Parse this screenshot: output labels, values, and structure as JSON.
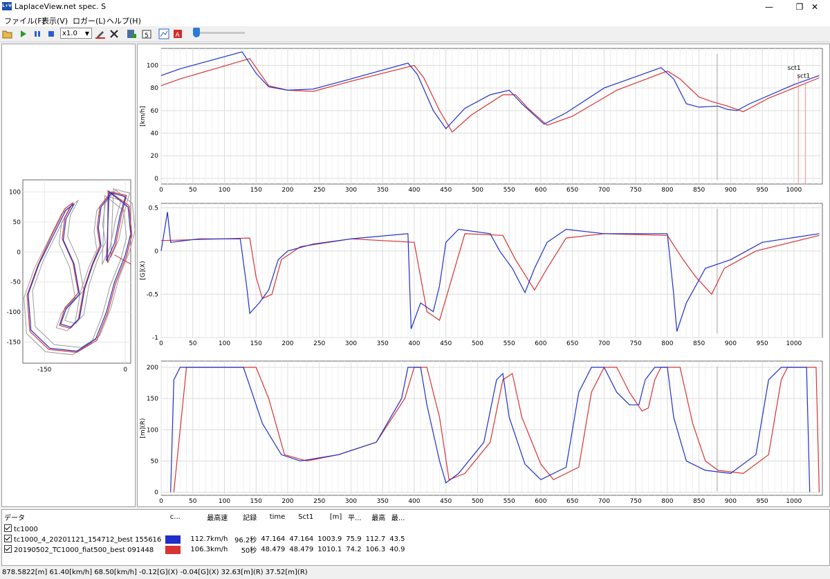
{
  "window": {
    "title": "LaplaceView.net spec. S",
    "icon_text": "L+V",
    "minimize": "—",
    "restore": "❐",
    "close": "✕"
  },
  "menu": [
    "ファイル(F)",
    "表示(V)",
    "ロガー(L)",
    "ヘルプ(H)"
  ],
  "toolbar": {
    "zoom_value": "x1.0",
    "icons": [
      "open-folder-icon",
      "play-icon",
      "pause-icon",
      "stop-icon",
      "zoom-select",
      "marker-icon",
      "delete-icon",
      "export-icon",
      "refresh-icon",
      "chart-icon",
      "pdf-icon",
      "position-slider"
    ]
  },
  "colors": {
    "blue": "#1f2fc8",
    "red": "#d83232"
  },
  "track_map": {
    "xlim": [
      -190,
      10
    ],
    "ylim": [
      -185,
      120
    ],
    "x_ticks": [
      -150,
      0
    ],
    "y_ticks": [
      100,
      50,
      0,
      -50,
      -100,
      -150
    ],
    "blue_path": [
      [
        -35,
        -15
      ],
      [
        -20,
        15
      ],
      [
        -10,
        60
      ],
      [
        0,
        92
      ],
      [
        -25,
        98
      ],
      [
        -45,
        75
      ],
      [
        -50,
        40
      ],
      [
        -45,
        10
      ],
      [
        -60,
        -20
      ],
      [
        -75,
        -60
      ],
      [
        -85,
        -110
      ],
      [
        -100,
        -125
      ],
      [
        -120,
        -120
      ],
      [
        -110,
        -95
      ],
      [
        -85,
        -70
      ],
      [
        -95,
        -20
      ],
      [
        -115,
        20
      ],
      [
        -110,
        55
      ],
      [
        -95,
        80
      ],
      [
        -110,
        70
      ],
      [
        -135,
        25
      ],
      [
        -160,
        -20
      ],
      [
        -180,
        -70
      ],
      [
        -175,
        -130
      ],
      [
        -140,
        -160
      ],
      [
        -90,
        -165
      ],
      [
        -55,
        -145
      ],
      [
        -35,
        -100
      ],
      [
        -20,
        -50
      ],
      [
        0,
        -5
      ],
      [
        10,
        30
      ],
      [
        5,
        75
      ],
      [
        -30,
        100
      ],
      [
        -35,
        -15
      ]
    ],
    "red_path": [
      [
        -33,
        -18
      ],
      [
        -18,
        12
      ],
      [
        -8,
        58
      ],
      [
        2,
        94
      ],
      [
        -26,
        100
      ],
      [
        -47,
        76
      ],
      [
        -52,
        41
      ],
      [
        -47,
        11
      ],
      [
        -62,
        -22
      ],
      [
        -77,
        -62
      ],
      [
        -87,
        -112
      ],
      [
        -102,
        -127
      ],
      [
        -122,
        -122
      ],
      [
        -112,
        -93
      ],
      [
        -87,
        -68
      ],
      [
        -97,
        -18
      ],
      [
        -117,
        22
      ],
      [
        -112,
        57
      ],
      [
        -97,
        82
      ],
      [
        -112,
        72
      ],
      [
        -137,
        27
      ],
      [
        -162,
        -22
      ],
      [
        -182,
        -72
      ],
      [
        -177,
        -132
      ],
      [
        -142,
        -162
      ],
      [
        -90,
        -167
      ],
      [
        -53,
        -147
      ],
      [
        -33,
        -102
      ],
      [
        -18,
        -52
      ],
      [
        2,
        -7
      ],
      [
        12,
        28
      ],
      [
        7,
        77
      ],
      [
        -32,
        102
      ],
      [
        -33,
        -18
      ]
    ]
  },
  "charts": [
    {
      "ylabel": "[km/h]",
      "ylim": [
        -5,
        115
      ],
      "y_ticks": [
        0,
        20,
        40,
        60,
        80,
        100
      ],
      "annotations": [
        "sct1",
        "sct1"
      ],
      "blue": [
        [
          0,
          91
        ],
        [
          30,
          97
        ],
        [
          128,
          112
        ],
        [
          150,
          93
        ],
        [
          170,
          81
        ],
        [
          200,
          78
        ],
        [
          240,
          79
        ],
        [
          300,
          88
        ],
        [
          390,
          102
        ],
        [
          405,
          92
        ],
        [
          430,
          60
        ],
        [
          450,
          44
        ],
        [
          480,
          62
        ],
        [
          520,
          74
        ],
        [
          550,
          78
        ],
        [
          570,
          66
        ],
        [
          605,
          48
        ],
        [
          640,
          58
        ],
        [
          700,
          80
        ],
        [
          790,
          98
        ],
        [
          810,
          88
        ],
        [
          830,
          66
        ],
        [
          850,
          63
        ],
        [
          880,
          64
        ],
        [
          895,
          61
        ],
        [
          910,
          60
        ],
        [
          930,
          66
        ],
        [
          1000,
          83
        ],
        [
          1040,
          91
        ]
      ],
      "red": [
        [
          0,
          82
        ],
        [
          30,
          88
        ],
        [
          140,
          106
        ],
        [
          170,
          82
        ],
        [
          200,
          78
        ],
        [
          240,
          77
        ],
        [
          300,
          86
        ],
        [
          400,
          100
        ],
        [
          415,
          89
        ],
        [
          440,
          60
        ],
        [
          460,
          41
        ],
        [
          490,
          56
        ],
        [
          540,
          74
        ],
        [
          560,
          74
        ],
        [
          580,
          62
        ],
        [
          610,
          47
        ],
        [
          650,
          55
        ],
        [
          720,
          78
        ],
        [
          800,
          95
        ],
        [
          820,
          88
        ],
        [
          850,
          72
        ],
        [
          870,
          68
        ],
        [
          895,
          64
        ],
        [
          920,
          59
        ],
        [
          960,
          71
        ],
        [
          1040,
          89
        ]
      ]
    },
    {
      "ylabel": "[G](X)",
      "ylim": [
        -1.0,
        0.55
      ],
      "y_ticks": [
        0.5,
        0,
        -0.5,
        -1
      ],
      "blue": [
        [
          0,
          0
        ],
        [
          10,
          0.45
        ],
        [
          15,
          0.1
        ],
        [
          60,
          0.14
        ],
        [
          125,
          0.14
        ],
        [
          135,
          -0.4
        ],
        [
          140,
          -0.72
        ],
        [
          155,
          -0.6
        ],
        [
          170,
          -0.45
        ],
        [
          185,
          -0.1
        ],
        [
          200,
          0.0
        ],
        [
          240,
          0.08
        ],
        [
          300,
          0.14
        ],
        [
          390,
          0.2
        ],
        [
          395,
          -0.9
        ],
        [
          410,
          -0.6
        ],
        [
          430,
          -0.7
        ],
        [
          440,
          -0.4
        ],
        [
          450,
          0.1
        ],
        [
          470,
          0.25
        ],
        [
          520,
          0.2
        ],
        [
          535,
          0.0
        ],
        [
          555,
          -0.2
        ],
        [
          575,
          -0.48
        ],
        [
          590,
          -0.2
        ],
        [
          610,
          0.1
        ],
        [
          640,
          0.25
        ],
        [
          700,
          0.2
        ],
        [
          800,
          0.2
        ],
        [
          810,
          -0.5
        ],
        [
          815,
          -0.93
        ],
        [
          830,
          -0.6
        ],
        [
          860,
          -0.2
        ],
        [
          900,
          -0.1
        ],
        [
          950,
          0.1
        ],
        [
          1040,
          0.2
        ]
      ],
      "red": [
        [
          0,
          0.12
        ],
        [
          140,
          0.15
        ],
        [
          150,
          -0.3
        ],
        [
          160,
          -0.55
        ],
        [
          175,
          -0.5
        ],
        [
          190,
          -0.1
        ],
        [
          220,
          0.05
        ],
        [
          300,
          0.14
        ],
        [
          400,
          0.1
        ],
        [
          410,
          -0.3
        ],
        [
          420,
          -0.7
        ],
        [
          440,
          -0.8
        ],
        [
          460,
          -0.3
        ],
        [
          480,
          0.2
        ],
        [
          540,
          0.18
        ],
        [
          560,
          -0.1
        ],
        [
          590,
          -0.45
        ],
        [
          610,
          -0.2
        ],
        [
          640,
          0.15
        ],
        [
          700,
          0.2
        ],
        [
          800,
          0.18
        ],
        [
          825,
          -0.1
        ],
        [
          845,
          -0.3
        ],
        [
          870,
          -0.5
        ],
        [
          890,
          -0.2
        ],
        [
          940,
          0.0
        ],
        [
          1040,
          0.18
        ]
      ]
    },
    {
      "ylabel": "[m](R)",
      "ylim": [
        -5,
        210
      ],
      "y_ticks": [
        0,
        50,
        100,
        150,
        200
      ],
      "blue": [
        [
          15,
          0
        ],
        [
          20,
          180
        ],
        [
          30,
          200
        ],
        [
          130,
          200
        ],
        [
          140,
          170
        ],
        [
          160,
          110
        ],
        [
          190,
          60
        ],
        [
          220,
          50
        ],
        [
          280,
          60
        ],
        [
          340,
          80
        ],
        [
          380,
          150
        ],
        [
          390,
          200
        ],
        [
          410,
          200
        ],
        [
          420,
          140
        ],
        [
          440,
          50
        ],
        [
          450,
          15
        ],
        [
          470,
          30
        ],
        [
          510,
          80
        ],
        [
          530,
          180
        ],
        [
          540,
          190
        ],
        [
          550,
          120
        ],
        [
          575,
          45
        ],
        [
          600,
          20
        ],
        [
          640,
          40
        ],
        [
          660,
          160
        ],
        [
          680,
          200
        ],
        [
          700,
          200
        ],
        [
          720,
          160
        ],
        [
          740,
          140
        ],
        [
          755,
          140
        ],
        [
          765,
          180
        ],
        [
          780,
          200
        ],
        [
          800,
          200
        ],
        [
          810,
          120
        ],
        [
          830,
          50
        ],
        [
          860,
          35
        ],
        [
          900,
          30
        ],
        [
          940,
          60
        ],
        [
          960,
          180
        ],
        [
          980,
          200
        ],
        [
          1020,
          200
        ],
        [
          1025,
          0
        ]
      ],
      "red": [
        [
          20,
          0
        ],
        [
          40,
          200
        ],
        [
          150,
          200
        ],
        [
          170,
          150
        ],
        [
          195,
          60
        ],
        [
          230,
          50
        ],
        [
          280,
          60
        ],
        [
          340,
          80
        ],
        [
          385,
          150
        ],
        [
          400,
          200
        ],
        [
          420,
          200
        ],
        [
          440,
          120
        ],
        [
          455,
          20
        ],
        [
          480,
          30
        ],
        [
          520,
          80
        ],
        [
          540,
          180
        ],
        [
          555,
          190
        ],
        [
          570,
          120
        ],
        [
          600,
          45
        ],
        [
          620,
          20
        ],
        [
          660,
          40
        ],
        [
          680,
          160
        ],
        [
          700,
          200
        ],
        [
          720,
          200
        ],
        [
          740,
          160
        ],
        [
          760,
          130
        ],
        [
          770,
          135
        ],
        [
          780,
          180
        ],
        [
          790,
          200
        ],
        [
          820,
          200
        ],
        [
          840,
          110
        ],
        [
          860,
          50
        ],
        [
          880,
          35
        ],
        [
          920,
          30
        ],
        [
          960,
          60
        ],
        [
          980,
          180
        ],
        [
          990,
          200
        ],
        [
          1035,
          200
        ],
        [
          1040,
          0
        ]
      ]
    }
  ],
  "x_ticks": [
    0,
    50,
    100,
    150,
    200,
    250,
    300,
    350,
    400,
    450,
    500,
    550,
    600,
    650,
    700,
    750,
    800,
    850,
    900,
    950,
    1000
  ],
  "xlim": [
    0,
    1045
  ],
  "table": {
    "headers": [
      "データ",
      "c...",
      "最高速",
      "記録",
      "time",
      "Sct1",
      "[m]",
      "平...",
      "最高",
      "最..."
    ],
    "group": "tc1000",
    "rows": [
      {
        "name": "tc1000_4_20201121_154712_best 155616",
        "color": "#1f2fc8",
        "max_speed": "112.7km/h",
        "record": "96.2秒",
        "time": "47.164",
        "sct1": "47.164",
        "m": "1003.9",
        "avg": "75.9",
        "max": "112.7",
        "min": "43.5"
      },
      {
        "name": "20190502_TC1000_fiat500_best 091448",
        "color": "#d83232",
        "max_speed": "106.3km/h",
        "record": "50秒",
        "time": "48.479",
        "sct1": "48.479",
        "m": "1010.1",
        "avg": "74.2",
        "max": "106.3",
        "min": "40.9"
      }
    ]
  },
  "status": "878.5822[m]  61.40[km/h] 68.50[km/h]  -0.12[G](X) -0.04[G](X)  32.63[m](R) 37.52[m](R)"
}
